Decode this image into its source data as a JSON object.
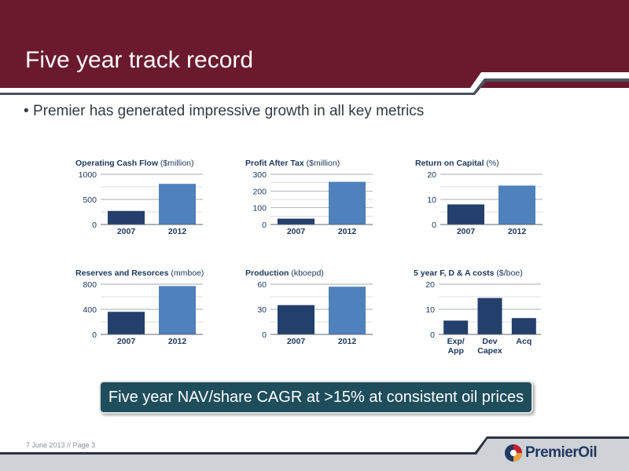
{
  "slide": {
    "title": "Five year track record",
    "bullet": "Premier has generated impressive growth in all key metrics",
    "callout": "Five year NAV/share CAGR at >15% at consistent oil prices",
    "footer": "7 June 2013 // Page 3",
    "logo_text": "PremierOil",
    "colors": {
      "header": "#6b1a2e",
      "dark_bar": "#233f6b",
      "light_bar": "#4f81bd",
      "callout": "#1e4d5c"
    }
  },
  "chart_data": [
    {
      "type": "bar",
      "title_bold": "Operating Cash Flow",
      "title_unit": "($million)",
      "categories": [
        "2007",
        "2012"
      ],
      "values": [
        270,
        810
      ],
      "ylim": [
        0,
        1000
      ],
      "yticks": [
        0,
        500,
        1000
      ]
    },
    {
      "type": "bar",
      "title_bold": "Profit After Tax",
      "title_unit": "($million)",
      "categories": [
        "2007",
        "2012"
      ],
      "values": [
        35,
        255
      ],
      "ylim": [
        0,
        300
      ],
      "yticks": [
        0,
        100,
        200,
        300
      ]
    },
    {
      "type": "bar",
      "title_bold": "Return on Capital",
      "title_unit": "(%)",
      "categories": [
        "2007",
        "2012"
      ],
      "values": [
        8,
        15.5
      ],
      "ylim": [
        0,
        20
      ],
      "yticks": [
        0,
        10,
        20
      ]
    },
    {
      "type": "bar",
      "title_bold": "Reserves and Resorces",
      "title_unit": "(mmboe)",
      "categories": [
        "2007",
        "2012"
      ],
      "values": [
        360,
        770
      ],
      "ylim": [
        0,
        800
      ],
      "yticks": [
        0,
        400,
        800
      ]
    },
    {
      "type": "bar",
      "title_bold": "Production",
      "title_unit": "(kboepd)",
      "categories": [
        "2007",
        "2012"
      ],
      "values": [
        35,
        57
      ],
      "ylim": [
        0,
        60
      ],
      "yticks": [
        0,
        30,
        60
      ]
    },
    {
      "type": "bar",
      "title_bold": "5 year F, D & A costs",
      "title_unit": "($/boe)",
      "categories": [
        [
          "Exp/",
          "App"
        ],
        [
          "Dev",
          "Capex"
        ],
        [
          "Acq"
        ]
      ],
      "values": [
        5.5,
        14.5,
        6.5
      ],
      "ylim": [
        0,
        20
      ],
      "yticks": [
        0,
        10,
        20
      ]
    }
  ]
}
